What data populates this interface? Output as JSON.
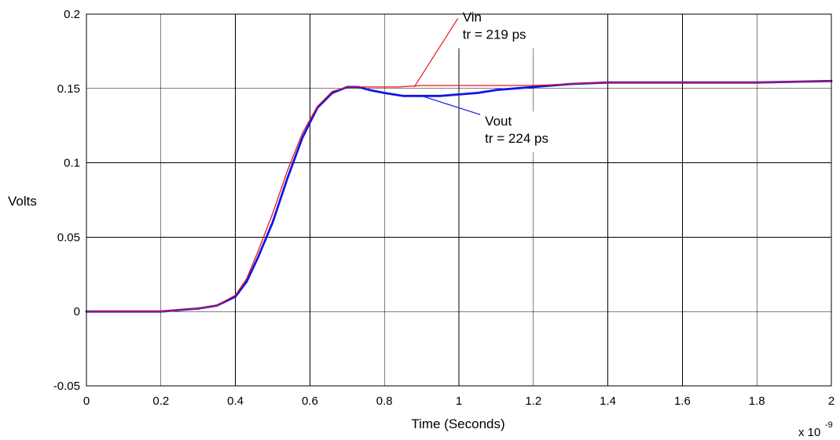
{
  "chart_data": {
    "type": "line",
    "title": "",
    "xlabel": "Time (Seconds)",
    "ylabel": "Volts",
    "x_multiplier_label": {
      "base": "x 10",
      "exponent": "-9"
    },
    "xlim": [
      0,
      2
    ],
    "ylim": [
      -0.05,
      0.2
    ],
    "grid": true,
    "x_ticks": [
      0,
      0.2,
      0.4,
      0.6,
      0.8,
      1,
      1.2,
      1.4,
      1.6,
      1.8,
      2
    ],
    "x_tick_labels": [
      "0",
      "0.2",
      "0.4",
      "0.6",
      "0.8",
      "1",
      "1.2",
      "1.4",
      "1.6",
      "1.8",
      "2"
    ],
    "y_ticks": [
      -0.05,
      0,
      0.05,
      0.1,
      0.15,
      0.2
    ],
    "y_tick_labels": [
      "-0.05",
      "0",
      "0.05",
      "0.1",
      "0.15",
      "0.2"
    ],
    "series": [
      {
        "name": "Vin",
        "color": "#e8141e",
        "x": [
          0,
          0.1,
          0.2,
          0.3,
          0.35,
          0.4,
          0.43,
          0.46,
          0.5,
          0.54,
          0.58,
          0.62,
          0.66,
          0.7,
          0.73,
          0.78,
          0.84,
          0.9,
          1.0,
          1.1,
          1.2,
          1.3,
          1.4,
          1.6,
          1.8,
          2.0
        ],
        "values": [
          0.0,
          0.0,
          0.0,
          0.002,
          0.004,
          0.011,
          0.022,
          0.04,
          0.066,
          0.095,
          0.12,
          0.138,
          0.148,
          0.151,
          0.151,
          0.151,
          0.151,
          0.152,
          0.152,
          0.152,
          0.152,
          0.153,
          0.154,
          0.154,
          0.154,
          0.155
        ]
      },
      {
        "name": "Vout",
        "color": "#1515e6",
        "x": [
          0,
          0.1,
          0.2,
          0.3,
          0.35,
          0.4,
          0.43,
          0.46,
          0.5,
          0.54,
          0.58,
          0.62,
          0.66,
          0.7,
          0.73,
          0.76,
          0.8,
          0.85,
          0.9,
          0.95,
          1.0,
          1.05,
          1.1,
          1.15,
          1.2,
          1.3,
          1.4,
          1.5,
          1.6,
          1.8,
          2.0
        ],
        "values": [
          0.0,
          0.0,
          0.0,
          0.002,
          0.004,
          0.01,
          0.02,
          0.036,
          0.06,
          0.09,
          0.117,
          0.137,
          0.147,
          0.151,
          0.151,
          0.149,
          0.147,
          0.145,
          0.145,
          0.145,
          0.146,
          0.147,
          0.149,
          0.15,
          0.151,
          0.153,
          0.154,
          0.154,
          0.154,
          0.154,
          0.155
        ]
      }
    ],
    "annotations": [
      {
        "lines": [
          "Vin",
          "tr = 219 ps"
        ],
        "color": "#e8141e",
        "target": [
          0.88,
          0.151
        ],
        "text_at": [
          1.01,
          0.195
        ]
      },
      {
        "lines": [
          "Vout",
          "tr = 224 ps"
        ],
        "color": "#1515e6",
        "target": [
          0.9,
          0.145
        ],
        "text_at": [
          1.07,
          0.125
        ]
      }
    ]
  }
}
